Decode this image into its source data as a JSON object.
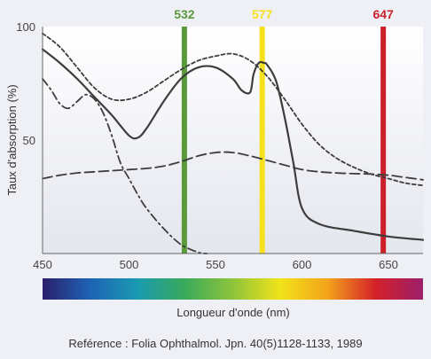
{
  "chart_data": {
    "type": "line",
    "title": "",
    "xlabel": "Longueur d'onde (nm)",
    "ylabel": "Taux d'absorption (%)",
    "xlim": [
      450,
      670
    ],
    "ylim": [
      0,
      100
    ],
    "x_ticks": [
      "450",
      "500",
      "550",
      "600",
      "650"
    ],
    "y_ticks": [
      "100",
      "50"
    ],
    "grid": false,
    "legend": "none",
    "laser_lines": [
      {
        "label": "532",
        "x": 532,
        "color": "#5a9a3a"
      },
      {
        "label": "577",
        "x": 577,
        "color": "#f6e11a"
      },
      {
        "label": "647",
        "x": 647,
        "color": "#cc1f2a"
      }
    ],
    "series": [
      {
        "style": "solid",
        "x": [
          450,
          460,
          470,
          480,
          490,
          500,
          505,
          510,
          520,
          530,
          540,
          550,
          560,
          565,
          570,
          572,
          575,
          578,
          580,
          585,
          590,
          595,
          600,
          610,
          630,
          650,
          670
        ],
        "y": [
          90,
          84,
          77,
          69,
          61,
          52,
          51,
          55,
          67,
          77,
          82,
          82,
          77,
          72,
          71,
          79,
          84,
          84,
          83,
          76,
          60,
          40,
          20,
          13,
          10,
          7.5,
          6
        ]
      },
      {
        "style": "short-dash",
        "x": [
          450,
          460,
          470,
          480,
          490,
          500,
          510,
          520,
          530,
          540,
          550,
          560,
          570,
          580,
          590,
          600,
          610,
          620,
          630,
          640,
          650,
          660,
          670
        ],
        "y": [
          97,
          91,
          82,
          73,
          68,
          68,
          71,
          76,
          81,
          85,
          87,
          88,
          85,
          78,
          68,
          57,
          48,
          42,
          38,
          35,
          33,
          31,
          30
        ]
      },
      {
        "style": "long-dash",
        "x": [
          450,
          460,
          470,
          480,
          490,
          500,
          510,
          520,
          530,
          540,
          550,
          560,
          570,
          580,
          590,
          600,
          610,
          620,
          630,
          640,
          650,
          660,
          670
        ],
        "y": [
          33,
          34.5,
          35.5,
          36,
          36.5,
          37,
          37.5,
          38.5,
          40.5,
          43,
          44.5,
          44.5,
          43,
          41,
          39,
          37,
          36,
          35.5,
          35.2,
          35,
          34.5,
          33.5,
          32.5
        ]
      },
      {
        "style": "dash-dot",
        "x": [
          450,
          455,
          460,
          465,
          470,
          475,
          480,
          485,
          490,
          495,
          500,
          505,
          510,
          520,
          530,
          540,
          545
        ],
        "y": [
          77,
          72,
          66,
          64,
          67,
          70,
          68,
          62,
          52,
          40,
          33,
          26,
          20,
          11,
          4,
          0.5,
          0
        ]
      }
    ]
  },
  "spectrum_bar": {
    "colors": [
      "#2a1f6b",
      "#1f63b5",
      "#1a9ab0",
      "#3aaa5a",
      "#8ec43a",
      "#f1e41a",
      "#f3a21a",
      "#d4202a",
      "#9c1f6a"
    ]
  },
  "reference": "Reférence : Folia Ophthalmol. Jpn. 40(5)1128-1133, 1989"
}
